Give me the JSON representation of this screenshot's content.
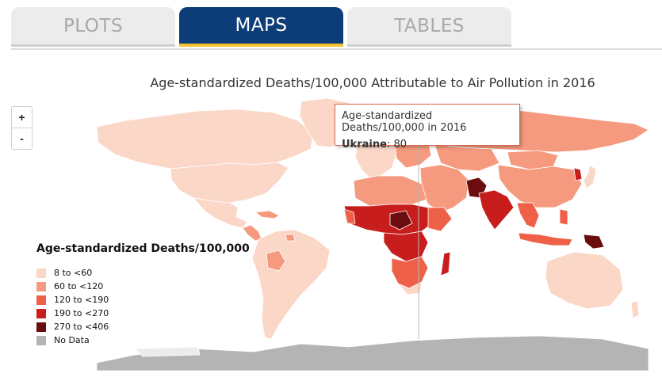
{
  "tabs": [
    {
      "label": "PLOTS",
      "active": false
    },
    {
      "label": "MAPS",
      "active": true
    },
    {
      "label": "TABLES",
      "active": false
    }
  ],
  "map": {
    "title": "Age-standardized Deaths/100,000 Attributable to Air Pollution in 2016",
    "zoom_in": "+",
    "zoom_out": "-"
  },
  "tooltip": {
    "title": "Age-standardized Deaths/100,000 in 2016",
    "country": "Ukraine",
    "value": "80"
  },
  "legend": {
    "title": "Age-standardized Deaths/100,000",
    "items": [
      {
        "label": "8 to <60",
        "color": "#fbd7c8"
      },
      {
        "label": "60 to <120",
        "color": "#f59a7e"
      },
      {
        "label": "120 to <190",
        "color": "#ee6148"
      },
      {
        "label": "190 to <270",
        "color": "#c81d1d"
      },
      {
        "label": "270 to <406",
        "color": "#6b0d10"
      },
      {
        "label": "No Data",
        "color": "#b4b4b4"
      }
    ]
  },
  "colors": {
    "tab_active": "#0d3d78",
    "tab_accent": "#f4c430",
    "tab_inactive": "#ececec"
  }
}
